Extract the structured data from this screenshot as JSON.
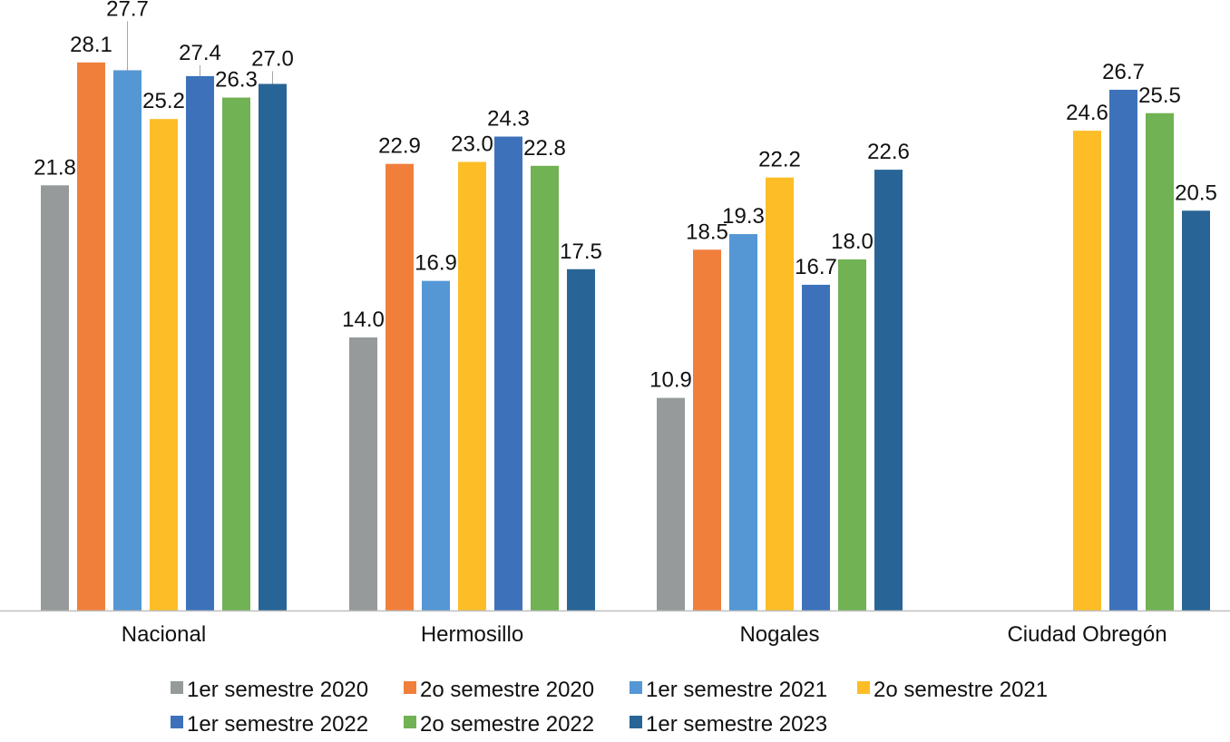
{
  "chart_data": {
    "type": "bar",
    "title": "",
    "xlabel": "",
    "ylabel": "",
    "ylim": [
      0,
      30
    ],
    "grid": false,
    "legend_position": "bottom",
    "categories": [
      "Nacional",
      "Hermosillo",
      "Nogales",
      "Ciudad Obregón"
    ],
    "series": [
      {
        "name": "1er semestre 2020",
        "color": "#969a9b",
        "values": [
          21.8,
          14.0,
          10.9,
          null
        ],
        "labels": [
          "21.8",
          "14.0",
          "10.9",
          null
        ]
      },
      {
        "name": "2o semestre 2020",
        "color": "#f07f3c",
        "values": [
          28.1,
          22.9,
          18.5,
          null
        ],
        "labels": [
          "28.1",
          "22.9",
          "18.5",
          null
        ]
      },
      {
        "name": "1er semestre 2021",
        "color": "#5497d4",
        "values": [
          27.7,
          16.9,
          19.3,
          null
        ],
        "labels": [
          "27.7",
          "16.9",
          "19.3",
          null
        ]
      },
      {
        "name": "2o semestre 2021",
        "color": "#fcbd27",
        "values": [
          25.2,
          23.0,
          22.2,
          24.6
        ],
        "labels": [
          "25.2",
          "23.0",
          "22.2",
          "24.6"
        ]
      },
      {
        "name": "1er semestre 2022",
        "color": "#3d72bb",
        "values": [
          27.4,
          24.3,
          16.7,
          26.7
        ],
        "labels": [
          "27.4",
          "24.3",
          "16.7",
          "26.7"
        ]
      },
      {
        "name": "2o semestre 2022",
        "color": "#70b254",
        "values": [
          26.3,
          22.8,
          18.0,
          25.5
        ],
        "labels": [
          "26.3",
          "22.8",
          "18.0",
          "25.5"
        ]
      },
      {
        "name": "1er semestre 2023",
        "color": "#286596",
        "values": [
          27.0,
          17.5,
          22.6,
          20.5
        ],
        "labels": [
          "27.0",
          "17.5",
          "22.6",
          "20.5"
        ]
      }
    ]
  }
}
